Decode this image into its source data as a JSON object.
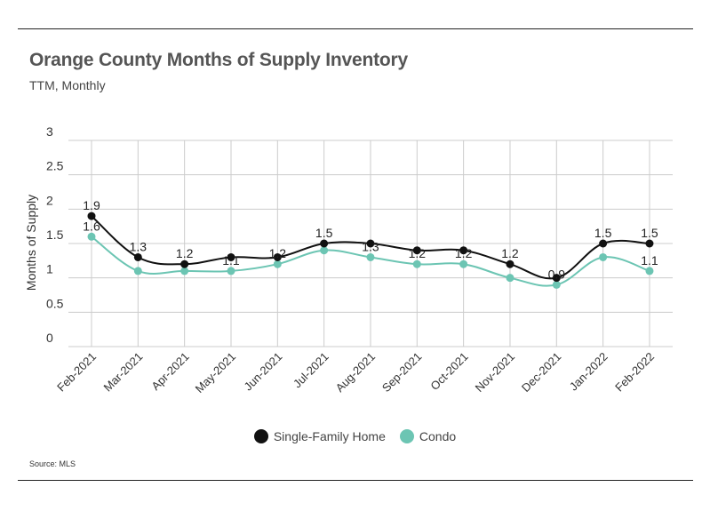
{
  "header": {
    "title": "Orange County Months of Supply Inventory",
    "subtitle": "TTM, Monthly"
  },
  "footer": {
    "source": "Source:  MLS"
  },
  "colors": {
    "sfh": "#111111",
    "condo": "#6cc5b3",
    "grid": "#cccccc"
  },
  "chart_data": {
    "type": "line",
    "title": "Orange County Months of Supply Inventory",
    "subtitle": "TTM, Monthly",
    "xlabel": "",
    "ylabel": "Months of Supply",
    "ylim": [
      0,
      3
    ],
    "yticks": [
      0,
      0.5,
      1,
      1.5,
      2,
      2.5,
      3
    ],
    "ytick_labels": [
      "0",
      "0.5",
      "1",
      "1.5",
      "2",
      "2.5",
      "3"
    ],
    "grid": true,
    "legend_position": "bottom-center",
    "categories": [
      "Feb-2021",
      "Mar-2021",
      "Apr-2021",
      "May-2021",
      "Jun-2021",
      "Jul-2021",
      "Aug-2021",
      "Sep-2021",
      "Oct-2021",
      "Nov-2021",
      "Dec-2021",
      "Jan-2022",
      "Feb-2022"
    ],
    "series": [
      {
        "name": "Single-Family Home",
        "values": [
          1.9,
          1.3,
          1.2,
          1.3,
          1.3,
          1.5,
          1.5,
          1.4,
          1.4,
          1.2,
          1.0,
          1.5,
          1.5
        ],
        "labels": [
          "1.9",
          "1.3",
          "1.2",
          "",
          "",
          "1.5",
          "",
          "",
          "",
          "1.2",
          "",
          "1.5",
          "1.5"
        ]
      },
      {
        "name": "Condo",
        "values": [
          1.6,
          1.1,
          1.1,
          1.1,
          1.2,
          1.4,
          1.3,
          1.2,
          1.2,
          1.0,
          0.9,
          1.3,
          1.1
        ],
        "labels": [
          "1.6",
          "",
          "",
          "1.1",
          "1.2",
          "",
          "1.3",
          "1.2",
          "1.2",
          "",
          "0.9",
          "",
          "1.1"
        ]
      }
    ]
  }
}
